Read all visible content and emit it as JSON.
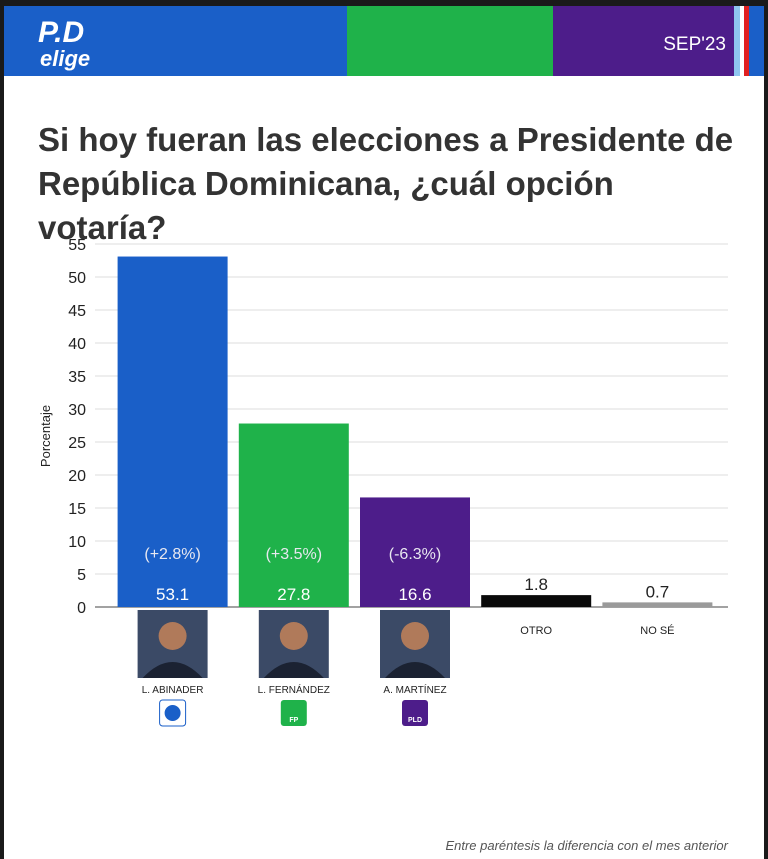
{
  "header": {
    "logo_top": "P.D",
    "logo_bottom": "elige",
    "date": "SEP'23"
  },
  "chart_data": {
    "type": "bar",
    "title": "Si hoy fueran las elecciones a Presidente de República Dominicana, ¿cuál opción votaría?",
    "y_label": "Porcentaje",
    "categories": [
      "L. ABINADER",
      "L. FERNÁNDEZ",
      "A. MARTÍNEZ",
      "OTRO",
      "NO SÉ"
    ],
    "values": [
      53.1,
      27.8,
      16.6,
      1.8,
      0.7
    ],
    "colors": [
      "#1a5fc8",
      "#1fb24a",
      "#4d1d8a",
      "#0a0a0a",
      "#9a9a9a"
    ],
    "annotations": [
      "(+2.8%)",
      "(+3.5%)",
      "(-6.3%)",
      null,
      null
    ],
    "party_labels": [
      null,
      "FP",
      "PLD"
    ],
    "ylim": [
      0,
      55
    ],
    "yticks": [
      0,
      5,
      10,
      15,
      20,
      25,
      30,
      35,
      40,
      45,
      50,
      55
    ],
    "grid": true
  },
  "footnote": "Entre paréntesis la diferencia con el mes anterior"
}
